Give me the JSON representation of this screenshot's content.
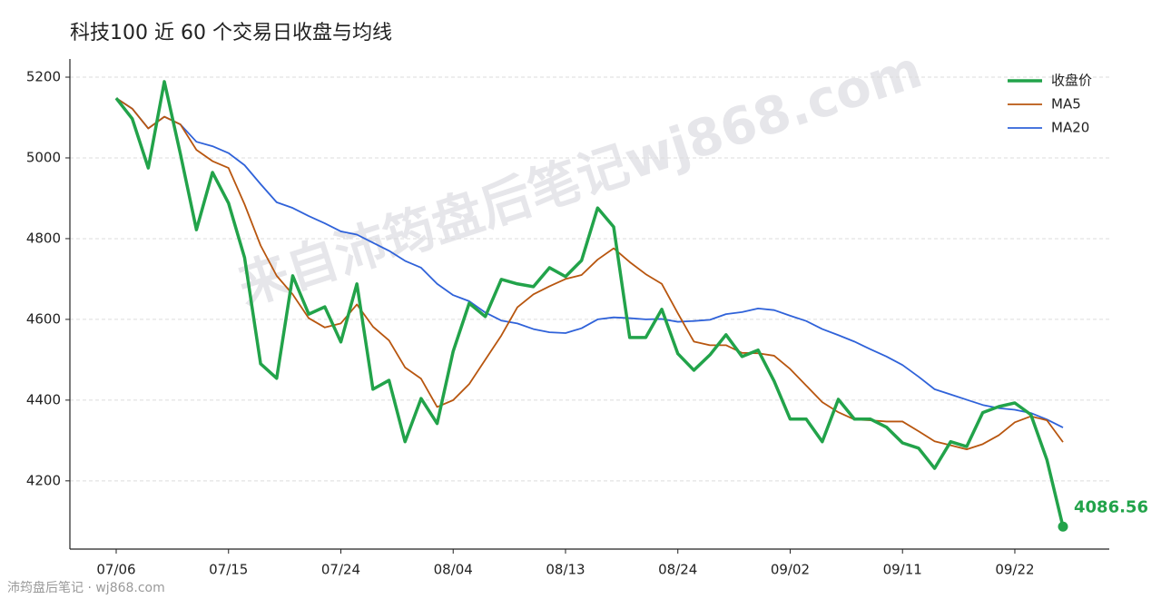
{
  "chart_data": {
    "type": "line",
    "title": "科技100 近 60 个交易日收盘与均线",
    "watermark": "来自沛筠盘后笔记wj868.com",
    "footer": "沛筠盘后笔记 · wj868.com",
    "categories": [
      "07/06",
      null,
      null,
      null,
      null,
      null,
      null,
      "07/15",
      null,
      null,
      null,
      null,
      null,
      null,
      "07/24",
      null,
      null,
      null,
      null,
      null,
      null,
      "08/04",
      null,
      null,
      null,
      null,
      null,
      null,
      "08/13",
      null,
      null,
      null,
      null,
      null,
      null,
      "08/24",
      null,
      null,
      null,
      null,
      null,
      null,
      "09/02",
      null,
      null,
      null,
      null,
      null,
      null,
      "09/11",
      null,
      null,
      null,
      null,
      null,
      null,
      "09/22",
      null,
      null,
      null
    ],
    "series": [
      {
        "name": "收盘价",
        "color": "#22a34a",
        "width": 3.5,
        "label_last": true,
        "values": [
          5148,
          5097,
          4975,
          5189,
          5010,
          4822,
          4964,
          4888,
          4753,
          4490,
          4454,
          4708,
          4613,
          4631,
          4544,
          4688,
          4427,
          4449,
          4297,
          4404,
          4342,
          4521,
          4640,
          4607,
          4699,
          4688,
          4681,
          4728,
          4706,
          4746,
          4876,
          4829,
          4555,
          4555,
          4625,
          4515,
          4474,
          4512,
          4562,
          4508,
          4524,
          4447,
          4353,
          4353,
          4297,
          4402,
          4353,
          4353,
          4333,
          4294,
          4281,
          4231,
          4297,
          4285,
          4369,
          4384,
          4393,
          4364,
          4252,
          4086.56
        ]
      },
      {
        "name": "MA5",
        "color": "#b8560f",
        "width": 1.8,
        "values": [
          5148,
          5122,
          5073,
          5102,
          5083,
          5020,
          4992,
          4975,
          4885,
          4783,
          4708,
          4662,
          4603,
          4580,
          4590,
          4637,
          4582,
          4548,
          4481,
          4453,
          4383,
          4400,
          4440,
          4500,
          4560,
          4630,
          4662,
          4682,
          4700,
          4710,
          4748,
          4776,
          4742,
          4712,
          4688,
          4615,
          4545,
          4536,
          4536,
          4517,
          4516,
          4510,
          4477,
          4436,
          4395,
          4370,
          4352,
          4350,
          4347,
          4347,
          4323,
          4298,
          4288,
          4278,
          4291,
          4313,
          4345,
          4360,
          4350,
          4296
        ]
      },
      {
        "name": "MA20",
        "color": "#2f62d9",
        "width": 1.8,
        "values": [
          5148,
          5122,
          5073,
          5102,
          5083,
          5040,
          5029,
          5012,
          4982,
          4935,
          4890,
          4876,
          4856,
          4838,
          4818,
          4810,
          4790,
          4770,
          4745,
          4728,
          4688,
          4660,
          4645,
          4617,
          4597,
          4590,
          4576,
          4568,
          4566,
          4578,
          4600,
          4605,
          4603,
          4600,
          4601,
          4594,
          4596,
          4599,
          4613,
          4618,
          4627,
          4623,
          4609,
          4596,
          4576,
          4561,
          4545,
          4526,
          4508,
          4487,
          4458,
          4427,
          4414,
          4401,
          4388,
          4380,
          4376,
          4368,
          4352,
          4332
        ]
      }
    ],
    "ylim": [
      4031,
      5245
    ],
    "yticks": [
      4200,
      4400,
      4600,
      4800,
      5000,
      5200
    ],
    "grid": true,
    "legend": "upper right"
  }
}
